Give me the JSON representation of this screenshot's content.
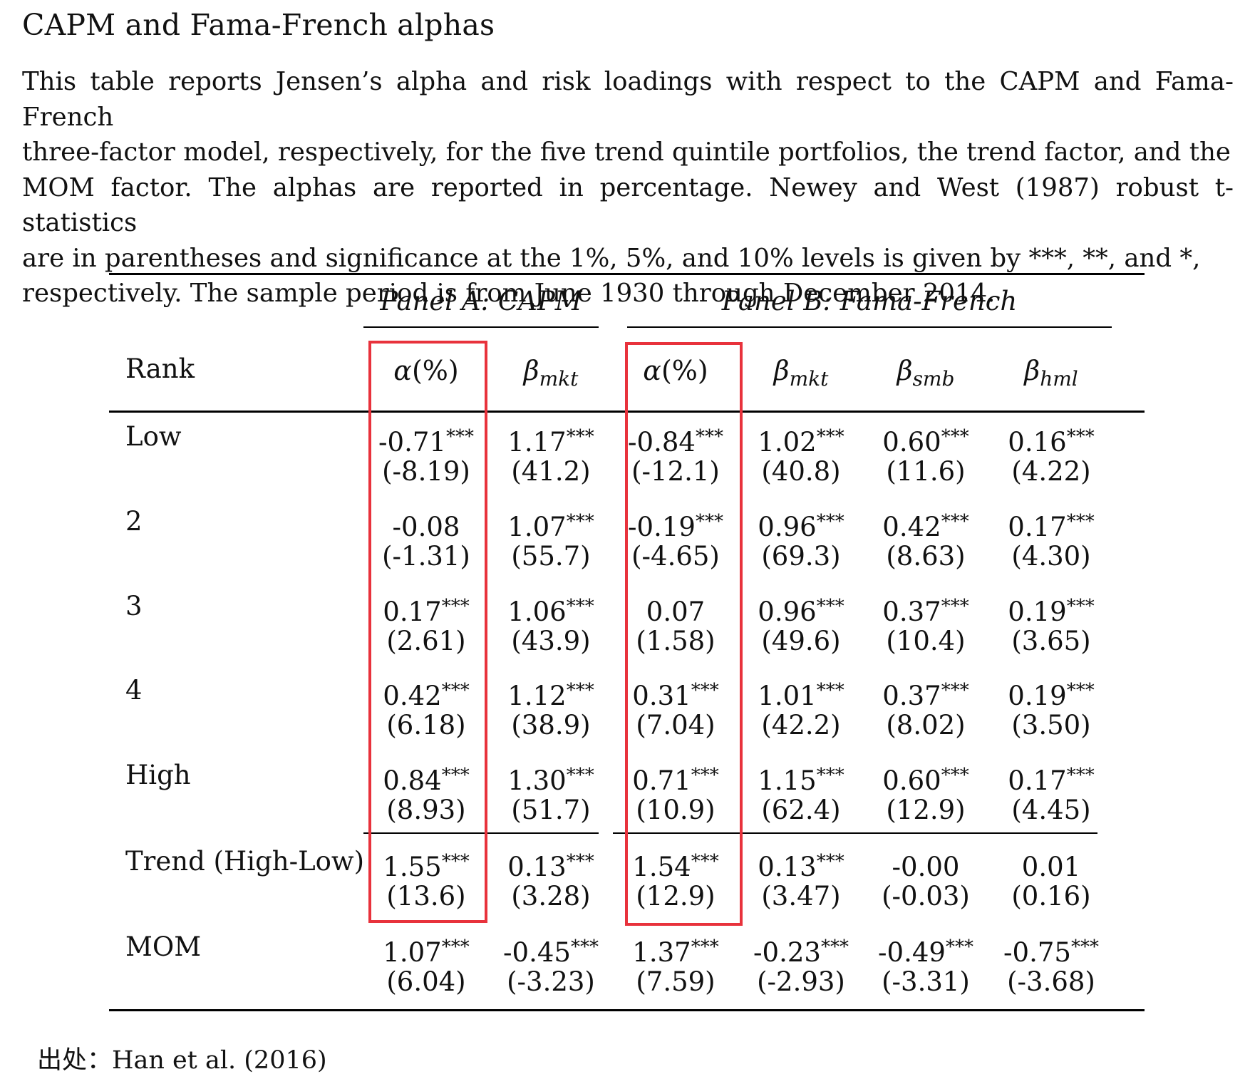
{
  "title": "CAPM and Fama-French alphas",
  "caption_lines": [
    "This table reports Jensen’s alpha and risk loadings with respect to the CAPM and Fama-French",
    "three-factor model, respectively, for the five trend quintile portfolios, the trend factor, and the",
    "MOM factor. The alphas are reported in percentage. Newey and West (1987) robust t-statistics",
    "are in parentheses and significance at the 1%, 5%, and 10% levels is given by ***, **, and *,",
    "respectively. The sample period is from June 1930 through December 2014."
  ],
  "table": {
    "panels": [
      "Panel A: CAPM",
      "Panel B: Fama-French"
    ],
    "row_header": "Rank",
    "columns": [
      {
        "base": "α",
        "rest": "(%)"
      },
      {
        "base": "β",
        "sub": "mkt"
      },
      {
        "base": "α",
        "rest": "(%)"
      },
      {
        "base": "β",
        "sub": "mkt"
      },
      {
        "base": "β",
        "sub": "smb"
      },
      {
        "base": "β",
        "sub": "hml"
      }
    ],
    "rows": [
      {
        "label": "Low",
        "values": [
          {
            "v": "-0.71",
            "s": "***",
            "t": "(-8.19)"
          },
          {
            "v": "1.17",
            "s": "***",
            "t": "(41.2)"
          },
          {
            "v": "-0.84",
            "s": "***",
            "t": "(-12.1)"
          },
          {
            "v": "1.02",
            "s": "***",
            "t": "(40.8)"
          },
          {
            "v": "0.60",
            "s": "***",
            "t": "(11.6)"
          },
          {
            "v": "0.16",
            "s": "***",
            "t": "(4.22)"
          }
        ]
      },
      {
        "label": "2",
        "values": [
          {
            "v": "-0.08",
            "s": "",
            "t": "(-1.31)"
          },
          {
            "v": "1.07",
            "s": "***",
            "t": "(55.7)"
          },
          {
            "v": "-0.19",
            "s": "***",
            "t": "(-4.65)"
          },
          {
            "v": "0.96",
            "s": "***",
            "t": "(69.3)"
          },
          {
            "v": "0.42",
            "s": "***",
            "t": "(8.63)"
          },
          {
            "v": "0.17",
            "s": "***",
            "t": "(4.30)"
          }
        ]
      },
      {
        "label": "3",
        "values": [
          {
            "v": "0.17",
            "s": "***",
            "t": "(2.61)"
          },
          {
            "v": "1.06",
            "s": "***",
            "t": "(43.9)"
          },
          {
            "v": "0.07",
            "s": "",
            "t": "(1.58)"
          },
          {
            "v": "0.96",
            "s": "***",
            "t": "(49.6)"
          },
          {
            "v": "0.37",
            "s": "***",
            "t": "(10.4)"
          },
          {
            "v": "0.19",
            "s": "***",
            "t": "(3.65)"
          }
        ]
      },
      {
        "label": "4",
        "values": [
          {
            "v": "0.42",
            "s": "***",
            "t": "(6.18)"
          },
          {
            "v": "1.12",
            "s": "***",
            "t": "(38.9)"
          },
          {
            "v": "0.31",
            "s": "***",
            "t": "(7.04)"
          },
          {
            "v": "1.01",
            "s": "***",
            "t": "(42.2)"
          },
          {
            "v": "0.37",
            "s": "***",
            "t": "(8.02)"
          },
          {
            "v": "0.19",
            "s": "***",
            "t": "(3.50)"
          }
        ]
      },
      {
        "label": "High",
        "values": [
          {
            "v": "0.84",
            "s": "***",
            "t": "(8.93)"
          },
          {
            "v": "1.30",
            "s": "***",
            "t": "(51.7)"
          },
          {
            "v": "0.71",
            "s": "***",
            "t": "(10.9)"
          },
          {
            "v": "1.15",
            "s": "***",
            "t": "(62.4)"
          },
          {
            "v": "0.60",
            "s": "***",
            "t": "(12.9)"
          },
          {
            "v": "0.17",
            "s": "***",
            "t": "(4.45)"
          }
        ]
      },
      {
        "label": "Trend (High-Low)",
        "values": [
          {
            "v": "1.55",
            "s": "***",
            "t": "(13.6)"
          },
          {
            "v": "0.13",
            "s": "***",
            "t": "(3.28)"
          },
          {
            "v": "1.54",
            "s": "***",
            "t": "(12.9)"
          },
          {
            "v": "0.13",
            "s": "***",
            "t": "(3.47)"
          },
          {
            "v": "-0.00",
            "s": "",
            "t": "(-0.03)"
          },
          {
            "v": "0.01",
            "s": "",
            "t": "(0.16)"
          }
        ]
      },
      {
        "label": "MOM",
        "values": [
          {
            "v": "1.07",
            "s": "***",
            "t": "(6.04)"
          },
          {
            "v": "-0.45",
            "s": "***",
            "t": "(-3.23)"
          },
          {
            "v": "1.37",
            "s": "***",
            "t": "(7.59)"
          },
          {
            "v": "-0.23",
            "s": "***",
            "t": "(-2.93)"
          },
          {
            "v": "-0.49",
            "s": "***",
            "t": "(-3.31)"
          },
          {
            "v": "-0.75",
            "s": "***",
            "t": "(-3.68)"
          }
        ]
      }
    ]
  },
  "highlight_color": "#e8323c",
  "source": "出处：Han et al. (2016)"
}
